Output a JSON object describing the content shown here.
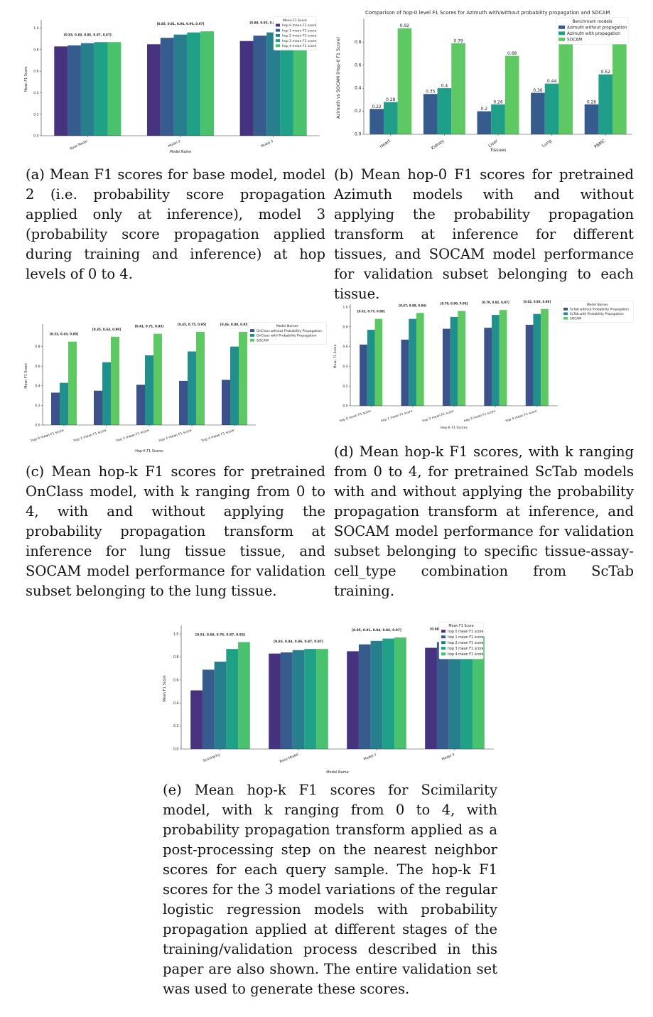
{
  "chart_data": [
    {
      "id": "a",
      "type": "bar",
      "title": "",
      "xlabel": "Model Name",
      "ylabel": "Mean F1 Score",
      "ylim": [
        0,
        1.05
      ],
      "yticks": [
        "0.0",
        "0.2",
        "0.4",
        "0.6",
        "0.8",
        "1.0"
      ],
      "categories": [
        "Base Model",
        "Model 2",
        "Model 3"
      ],
      "group_labels": [
        "[0.83, 0.84, 0.86, 0.87, 0.87]",
        "[0.85, 0.91, 0.94, 0.96, 0.97]",
        "[0.88, 0.93, 0.96, 0.97, 0.98]"
      ],
      "legend_title": "Mean F1 Score",
      "legend_position": "upper right",
      "colors": [
        "#46327e",
        "#365c8d",
        "#277f8e",
        "#1fa187",
        "#4ac16d",
        "#a0da39"
      ],
      "series": [
        {
          "name": "hop 0 mean F1 score",
          "values": [
            0.83,
            0.85,
            0.88
          ]
        },
        {
          "name": "hop 1 mean F1 score",
          "values": [
            0.84,
            0.91,
            0.93
          ]
        },
        {
          "name": "hop 2 mean F1 score",
          "values": [
            0.86,
            0.94,
            0.96
          ]
        },
        {
          "name": "hop 3 mean F1 score",
          "values": [
            0.87,
            0.96,
            0.97
          ]
        },
        {
          "name": "hop 4 mean F1 score",
          "values": [
            0.87,
            0.97,
            0.98
          ]
        }
      ]
    },
    {
      "id": "b",
      "type": "bar",
      "title": "Comparison of hop-0 level F1 Scores for Azimuth with/without probability propagation and SOCAM",
      "xlabel": "Tissues",
      "ylabel": "Azimuth vs SOCAM (Hop-0 F1 Score)",
      "ylim": [
        0,
        0.98
      ],
      "yticks": [
        "0.0",
        "0.2",
        "0.4",
        "0.6",
        "0.8"
      ],
      "categories": [
        "Heart",
        "Kidney",
        "Liver",
        "Lung",
        "PBMC"
      ],
      "legend_title": "Benchmark models",
      "legend_position": "upper right",
      "show_value_labels": true,
      "series": [
        {
          "name": "Azimuth without propagation",
          "color": "#365c8d",
          "values": [
            0.22,
            0.35,
            0.2,
            0.36,
            0.26
          ]
        },
        {
          "name": "Azimuth with propagation",
          "color": "#1f9e89",
          "values": [
            0.28,
            0.4,
            0.26,
            0.44,
            0.52
          ]
        },
        {
          "name": "SOCAM",
          "color": "#5ec962",
          "values": [
            0.92,
            0.79,
            0.68,
            0.85,
            0.82
          ]
        }
      ]
    },
    {
      "id": "c",
      "type": "bar",
      "title": "",
      "xlabel": "Hop-K F1 Scores",
      "ylabel": "Mean F1 Score",
      "ylim": [
        0,
        1.0
      ],
      "yticks": [
        "0.0",
        "0.2",
        "0.4",
        "0.6",
        "0.8"
      ],
      "categories": [
        "hop 0 mean F1 score",
        "hop 1 mean F1 score",
        "hop 2 mean F1 score",
        "hop 3 mean F1 score",
        "hop 4 mean F1 score"
      ],
      "group_labels": [
        "[0.33, 0.43, 0.85]",
        "[0.35, 0.64, 0.90]",
        "[0.41, 0.71, 0.93]",
        "[0.45, 0.75, 0.95]",
        "[0.46, 0.80, 0.95]"
      ],
      "legend_title": "Model Names",
      "legend_position": "upper right",
      "series": [
        {
          "name": "OnClass without Probability Propagation",
          "color": "#3b528b",
          "values": [
            0.33,
            0.35,
            0.41,
            0.45,
            0.46
          ]
        },
        {
          "name": "OnClass with Probability Propagation",
          "color": "#21908d",
          "values": [
            0.43,
            0.64,
            0.71,
            0.75,
            0.8
          ]
        },
        {
          "name": "SOCAM",
          "color": "#5ec962",
          "values": [
            0.85,
            0.9,
            0.93,
            0.95,
            0.95
          ]
        }
      ]
    },
    {
      "id": "d",
      "type": "bar",
      "title": "",
      "xlabel": "Hop-K F1 Scores",
      "ylabel": "Mean F1 Score",
      "ylim": [
        0,
        1.0
      ],
      "yticks": [
        "0.0",
        "0.2",
        "0.4",
        "0.6",
        "0.8",
        "1.0"
      ],
      "categories": [
        "hop 0 mean F1 score",
        "hop 1 mean F1 score",
        "hop 2 mean F1 score",
        "hop 3 mean F1 score",
        "hop 4 mean F1 score"
      ],
      "group_labels": [
        "[0.62, 0.77, 0.88]",
        "[0.67, 0.88, 0.94]",
        "[0.78, 0.90, 0.96]",
        "[0.79, 0.92, 0.97]",
        "[0.82, 0.93, 0.98]"
      ],
      "legend_title": "Model Names",
      "legend_position": "upper right",
      "series": [
        {
          "name": "ScTab without Probability Propagation",
          "color": "#3b528b",
          "values": [
            0.62,
            0.67,
            0.78,
            0.79,
            0.82
          ]
        },
        {
          "name": "ScTab with Probability Propagation",
          "color": "#21908d",
          "values": [
            0.77,
            0.88,
            0.9,
            0.92,
            0.93
          ]
        },
        {
          "name": "SOCAM",
          "color": "#5ec962",
          "values": [
            0.88,
            0.94,
            0.96,
            0.97,
            0.98
          ]
        }
      ]
    },
    {
      "id": "e",
      "type": "bar",
      "title": "",
      "xlabel": "Model Name",
      "ylabel": "Mean F1 Score",
      "ylim": [
        0,
        1.05
      ],
      "yticks": [
        "0.0",
        "0.2",
        "0.4",
        "0.6",
        "0.8",
        "1.0"
      ],
      "categories": [
        "Scimilarity",
        "Base Model",
        "Model 2",
        "Model 3"
      ],
      "group_labels": [
        "[0.51, 0.69, 0.76, 0.87, 0.93]",
        "[0.83, 0.84, 0.86, 0.87, 0.87]",
        "[0.85, 0.91, 0.94, 0.96, 0.97]",
        "[0.88, 0.93, 0.96, 0.97, 0.98]"
      ],
      "legend_title": "Mean F1 Score",
      "legend_position": "upper right",
      "colors": [
        "#46327e",
        "#365c8d",
        "#277f8e",
        "#1fa187",
        "#4ac16d",
        "#a0da39"
      ],
      "series": [
        {
          "name": "hop 0 mean F1 score",
          "values": [
            0.51,
            0.83,
            0.85,
            0.88
          ]
        },
        {
          "name": "hop 1 mean F1 score",
          "values": [
            0.69,
            0.84,
            0.91,
            0.93
          ]
        },
        {
          "name": "hop 2 mean F1 score",
          "values": [
            0.76,
            0.86,
            0.94,
            0.96
          ]
        },
        {
          "name": "hop 3 mean F1 score",
          "values": [
            0.87,
            0.87,
            0.96,
            0.97
          ]
        },
        {
          "name": "hop 4 mean F1 score",
          "values": [
            0.93,
            0.87,
            0.97,
            0.98
          ]
        }
      ]
    }
  ],
  "captions": {
    "a": "(a) Mean F1 scores for base model, model 2 (i.e. probability score propagation applied only at inference), model 3 (probability score propagation applied during training and inference) at hop levels of 0 to 4.",
    "b": "(b) Mean hop-0 F1 scores for pretrained Azimuth models with and without applying the probability propagation transform at inference for different tissues, and SOCAM model performance for validation subset belonging to each tissue.",
    "c": "(c) Mean hop-k F1 scores for pretrained OnClass model, with k ranging from 0 to 4, with and without applying the probability propagation transform at inference for lung tissue tissue, and SOCAM model performance for validation subset belonging to the lung tissue.",
    "d": "(d) Mean hop-k F1 scores, with k ranging from 0 to 4, for pretrained ScTab models with and without applying the probability propagation transform at inference, and SOCAM model performance for validation subset belonging to specific tissue-assay-cell_type combination from ScTab training.",
    "e": "(e) Mean hop-k F1 scores for Scimilarity model, with k ranging from 0 to 4, with probability propagation transform applied as a post-processing step on the nearest neighbor scores for each query sample. The hop-k F1 scores for the 3 model variations of the regular logistic regression models with probability propagation applied at different stages of the training/validation process described in this paper are also shown. The entire validation set was used to generate these scores."
  }
}
